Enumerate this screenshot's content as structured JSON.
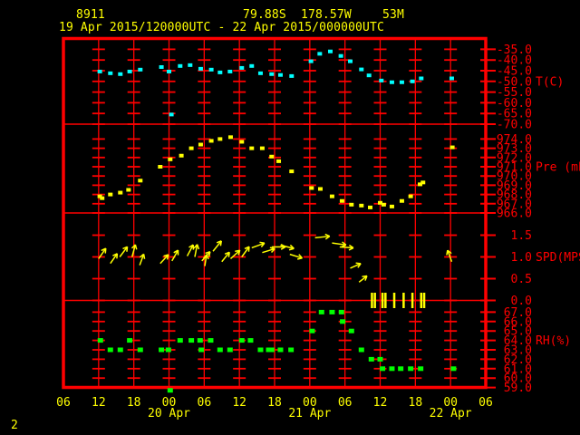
{
  "page_label": "2",
  "header": {
    "station_id": "8911",
    "latitude": "79.88S",
    "longitude": "178.57W",
    "elevation": "53M",
    "time_range": "19 Apr 2015/120000UTC - 22 Apr 2015/000000UTC"
  },
  "colors": {
    "background": "#000000",
    "grid": "#ff0000",
    "axis_text": "#ff0000",
    "header_text": "#ffff00",
    "temperature": "#00ffff",
    "pressure": "#ffff00",
    "wind": "#ffff00",
    "humidity": "#00ff00"
  },
  "time_axis": {
    "hours_span": 72,
    "start": "19 Apr 2015 06UTC",
    "tick_labels": [
      "06",
      "12",
      "18",
      "00",
      "06",
      "12",
      "18",
      "00",
      "06",
      "12",
      "18",
      "00",
      "06"
    ],
    "date_labels": [
      {
        "label": "20 Apr",
        "tick": 3
      },
      {
        "label": "21 Apr",
        "tick": 7
      },
      {
        "label": "22 Apr",
        "tick": 11
      }
    ]
  },
  "chart_data": [
    {
      "type": "scatter",
      "name": "temperature",
      "unit_label": "T(C)",
      "unit_label_tick": 3,
      "color_key": "temperature",
      "yticks": [
        "-35.0",
        "-40.0",
        "-45.0",
        "-50.0",
        "-55.0",
        "-60.0",
        "-65.0",
        "-70.0"
      ],
      "points": [
        [
          6.2,
          -45.4
        ],
        [
          8.0,
          -46.2
        ],
        [
          9.7,
          -46.6
        ],
        [
          11.3,
          -45.4
        ],
        [
          13.1,
          -44.5
        ],
        [
          16.7,
          -43.3
        ],
        [
          18.0,
          -45.4
        ],
        [
          18.4,
          -65.5
        ],
        [
          19.9,
          -42.8
        ],
        [
          21.6,
          -42.4
        ],
        [
          23.4,
          -44.1
        ],
        [
          25.2,
          -44.5
        ],
        [
          26.7,
          -45.8
        ],
        [
          28.4,
          -45.4
        ],
        [
          30.4,
          -43.7
        ],
        [
          32.1,
          -42.8
        ],
        [
          33.6,
          -46.2
        ],
        [
          35.5,
          -46.6
        ],
        [
          37.0,
          -47.0
        ],
        [
          38.9,
          -47.5
        ],
        [
          42.2,
          -40.6
        ],
        [
          43.7,
          -37.1
        ],
        [
          45.5,
          -36.0
        ],
        [
          47.3,
          -38.1
        ],
        [
          48.9,
          -40.6
        ],
        [
          50.8,
          -44.4
        ],
        [
          52.1,
          -47.2
        ],
        [
          54.2,
          -49.6
        ],
        [
          56.0,
          -50.4
        ],
        [
          57.7,
          -50.4
        ],
        [
          59.5,
          -50.0
        ],
        [
          61.0,
          -48.6
        ],
        [
          66.2,
          -48.6
        ]
      ]
    },
    {
      "type": "scatter",
      "name": "pressure",
      "unit_label": "Pre (mb)",
      "unit_label_tick": 3,
      "color_key": "pressure",
      "yticks": [
        "974.0",
        "973.0",
        "972.0",
        "971.0",
        "970.0",
        "969.0",
        "968.0",
        "967.0",
        "966.0"
      ],
      "points": [
        [
          6.2,
          967.8
        ],
        [
          6.6,
          967.6
        ],
        [
          8.0,
          968.0
        ],
        [
          9.7,
          968.2
        ],
        [
          11.1,
          968.5
        ],
        [
          13.1,
          969.5
        ],
        [
          16.5,
          971.0
        ],
        [
          18.2,
          971.8
        ],
        [
          20.1,
          972.2
        ],
        [
          21.8,
          973.0
        ],
        [
          23.4,
          973.4
        ],
        [
          25.2,
          973.8
        ],
        [
          26.7,
          974.0
        ],
        [
          28.5,
          974.2
        ],
        [
          30.4,
          973.7
        ],
        [
          32.1,
          973.0
        ],
        [
          33.9,
          973.0
        ],
        [
          35.5,
          972.1
        ],
        [
          36.7,
          971.6
        ],
        [
          38.9,
          970.5
        ],
        [
          42.3,
          968.7
        ],
        [
          43.8,
          968.6
        ],
        [
          45.8,
          967.8
        ],
        [
          47.5,
          967.3
        ],
        [
          49.1,
          966.9
        ],
        [
          50.8,
          966.8
        ],
        [
          52.3,
          966.6
        ],
        [
          54.0,
          967.1
        ],
        [
          54.6,
          966.9
        ],
        [
          56.0,
          966.7
        ],
        [
          57.7,
          967.3
        ],
        [
          59.2,
          967.8
        ],
        [
          60.8,
          969.1
        ],
        [
          61.3,
          969.3
        ],
        [
          66.3,
          973.1
        ]
      ]
    },
    {
      "type": "wind_vectors",
      "name": "wind_speed",
      "unit_label": "SPD(MPS)",
      "unit_label_tick": 1,
      "color_key": "wind",
      "dir_convention": "degrees CCW from screen-right",
      "yticks": [
        "1.5",
        "1.0",
        "0.5",
        "0.0"
      ],
      "vectors": [
        [
          6.0,
          0.96,
          55
        ],
        [
          8.0,
          0.85,
          55
        ],
        [
          9.6,
          1.0,
          53
        ],
        [
          11.7,
          1.0,
          75
        ],
        [
          13.0,
          0.81,
          70
        ],
        [
          16.5,
          0.85,
          47
        ],
        [
          18.5,
          0.91,
          60
        ],
        [
          21.1,
          1.02,
          62
        ],
        [
          22.4,
          1.0,
          79
        ],
        [
          23.6,
          0.91,
          48
        ],
        [
          24.1,
          0.79,
          81
        ],
        [
          25.5,
          1.13,
          51
        ],
        [
          27.0,
          0.89,
          51
        ],
        [
          28.5,
          0.96,
          42
        ],
        [
          30.4,
          1.0,
          54
        ],
        [
          32.1,
          1.21,
          20
        ],
        [
          33.9,
          1.1,
          17
        ],
        [
          35.5,
          1.23,
          0
        ],
        [
          37.0,
          1.27,
          -14
        ],
        [
          38.6,
          1.06,
          -17
        ],
        [
          42.9,
          1.44,
          6
        ],
        [
          45.8,
          1.32,
          -8
        ],
        [
          47.1,
          1.23,
          -4
        ],
        [
          48.9,
          0.74,
          24
        ],
        [
          50.4,
          0.42,
          38
        ],
        [
          66.2,
          0.89,
          110
        ]
      ],
      "calm_marks": [
        52.6,
        53.1,
        54.4,
        54.9,
        56.4,
        58.0,
        59.5,
        61.0,
        61.5
      ]
    },
    {
      "type": "scatter",
      "name": "relative_humidity",
      "unit_label": "RH(%)",
      "unit_label_tick": 3,
      "color_key": "humidity",
      "yticks": [
        "67.0",
        "66.0",
        "65.0",
        "64.0",
        "63.0",
        "62.0",
        "61.0",
        "60.0",
        "59.0"
      ],
      "points": [
        [
          6.3,
          64
        ],
        [
          8.0,
          63
        ],
        [
          9.7,
          63
        ],
        [
          11.3,
          64
        ],
        [
          13.1,
          63
        ],
        [
          16.7,
          63
        ],
        [
          17.9,
          63
        ],
        [
          18.2,
          58.7
        ],
        [
          19.9,
          64
        ],
        [
          21.8,
          64
        ],
        [
          23.3,
          64
        ],
        [
          23.5,
          63
        ],
        [
          25.1,
          64
        ],
        [
          26.7,
          63
        ],
        [
          28.4,
          63
        ],
        [
          30.4,
          64
        ],
        [
          31.9,
          64
        ],
        [
          33.6,
          63
        ],
        [
          35.0,
          63
        ],
        [
          35.5,
          63
        ],
        [
          37.0,
          63
        ],
        [
          38.8,
          63
        ],
        [
          42.4,
          65
        ],
        [
          44.0,
          67
        ],
        [
          45.8,
          67
        ],
        [
          47.4,
          67
        ],
        [
          47.6,
          66
        ],
        [
          49.1,
          65
        ],
        [
          50.8,
          63
        ],
        [
          52.5,
          62
        ],
        [
          54.0,
          62
        ],
        [
          54.4,
          61
        ],
        [
          56.0,
          61
        ],
        [
          57.5,
          61
        ],
        [
          59.2,
          61
        ],
        [
          60.9,
          61
        ],
        [
          66.5,
          61
        ]
      ]
    }
  ]
}
